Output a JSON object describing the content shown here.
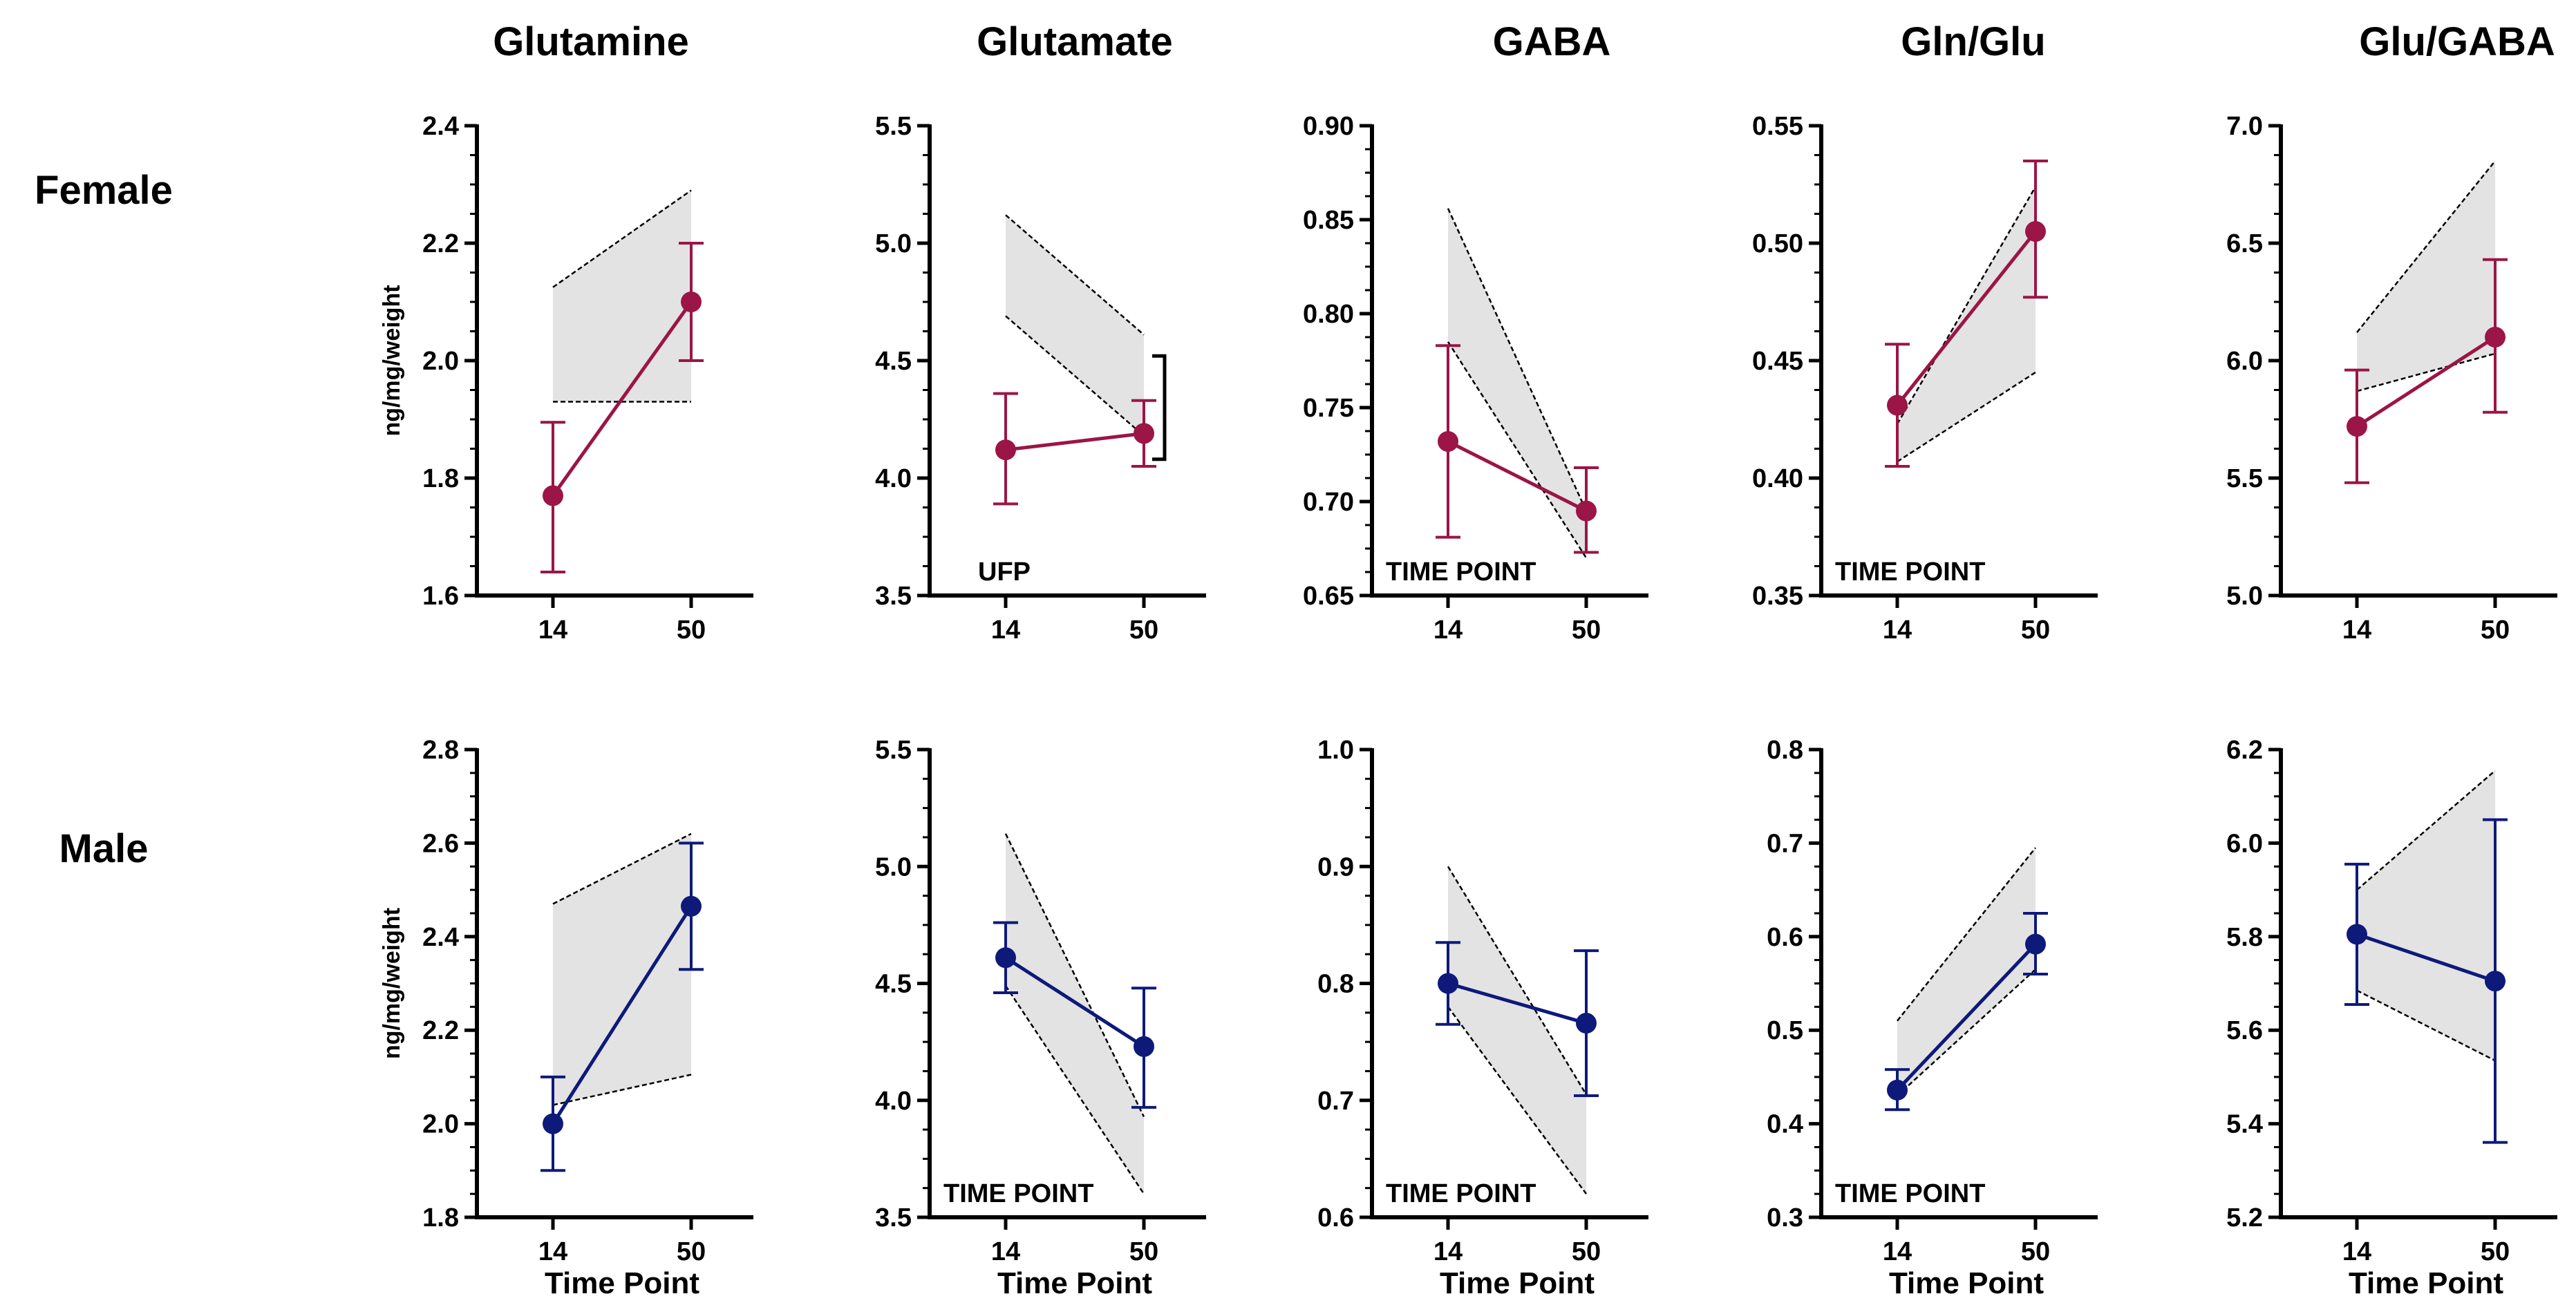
{
  "colors": {
    "female": "#9b1546",
    "male": "#0d1a7a",
    "band": "#e3e3e3",
    "axis": "#000000"
  },
  "column_titles": [
    "Glutamine",
    "Glutamate",
    "GABA",
    "Gln/Glu",
    "Glu/GABA"
  ],
  "row_labels": [
    "Female",
    "Male"
  ],
  "ylabel": "ng/mg/weight",
  "xlabel": "Time Point",
  "chart_data": [
    {
      "type": "line",
      "row": "Female",
      "title": "Glutamine",
      "ylabel": "ng/mg/weight",
      "xlabel": "",
      "categories": [
        "14",
        "50"
      ],
      "ylim": [
        1.6,
        2.4
      ],
      "yticks": [
        "1.6",
        "1.8",
        "2.0",
        "2.2",
        "2.4"
      ],
      "means": [
        1.77,
        2.1
      ],
      "err_low": [
        1.64,
        2.0
      ],
      "err_high": [
        1.895,
        2.2
      ],
      "band_upper": [
        2.125,
        2.29
      ],
      "band_lower": [
        1.93,
        1.93
      ],
      "annotation": ""
    },
    {
      "type": "line",
      "row": "Female",
      "title": "Glutamate",
      "ylabel": "",
      "xlabel": "",
      "categories": [
        "14",
        "50"
      ],
      "ylim": [
        3.5,
        5.5
      ],
      "yticks": [
        "3.5",
        "4.0",
        "4.5",
        "5.0",
        "5.5"
      ],
      "means": [
        4.12,
        4.19
      ],
      "err_low": [
        3.89,
        4.05
      ],
      "err_high": [
        4.36,
        4.33
      ],
      "band_upper": [
        5.12,
        4.61
      ],
      "band_lower": [
        4.69,
        4.18
      ],
      "annotation": "UFP",
      "bracket": true
    },
    {
      "type": "line",
      "row": "Female",
      "title": "GABA",
      "ylabel": "",
      "xlabel": "",
      "categories": [
        "14",
        "50"
      ],
      "ylim": [
        0.65,
        0.9
      ],
      "yticks": [
        "0.65",
        "0.70",
        "0.75",
        "0.80",
        "0.85",
        "0.90"
      ],
      "means": [
        0.732,
        0.695
      ],
      "err_low": [
        0.681,
        0.673
      ],
      "err_high": [
        0.783,
        0.718
      ],
      "band_upper": [
        0.856,
        0.695
      ],
      "band_lower": [
        0.785,
        0.67
      ],
      "annotation": "TIME POINT"
    },
    {
      "type": "line",
      "row": "Female",
      "title": "Gln/Glu",
      "ylabel": "",
      "xlabel": "",
      "categories": [
        "14",
        "50"
      ],
      "ylim": [
        0.35,
        0.55
      ],
      "yticks": [
        "0.35",
        "0.40",
        "0.45",
        "0.50",
        "0.55"
      ],
      "means": [
        0.431,
        0.505
      ],
      "err_low": [
        0.405,
        0.477
      ],
      "err_high": [
        0.457,
        0.535
      ],
      "band_upper": [
        0.423,
        0.524
      ],
      "band_lower": [
        0.407,
        0.445
      ],
      "annotation": "TIME POINT"
    },
    {
      "type": "line",
      "row": "Female",
      "title": "Glu/GABA",
      "ylabel": "",
      "xlabel": "",
      "categories": [
        "14",
        "50"
      ],
      "ylim": [
        5.0,
        7.0
      ],
      "yticks": [
        "5.0",
        "5.5",
        "6.0",
        "6.5",
        "7.0"
      ],
      "means": [
        5.72,
        6.1
      ],
      "err_low": [
        5.48,
        5.78
      ],
      "err_high": [
        5.96,
        6.43
      ],
      "band_upper": [
        6.12,
        6.85
      ],
      "band_lower": [
        5.87,
        6.03
      ],
      "annotation": ""
    },
    {
      "type": "line",
      "row": "Male",
      "title": "Glutamine",
      "ylabel": "ng/mg/weight",
      "xlabel": "Time Point",
      "categories": [
        "14",
        "50"
      ],
      "ylim": [
        1.8,
        2.8
      ],
      "yticks": [
        "1.8",
        "2.0",
        "2.2",
        "2.4",
        "2.6",
        "2.8"
      ],
      "means": [
        2.0,
        2.465
      ],
      "err_low": [
        1.9,
        2.33
      ],
      "err_high": [
        2.1,
        2.6
      ],
      "band_upper": [
        2.47,
        2.62
      ],
      "band_lower": [
        2.04,
        2.105
      ],
      "annotation": ""
    },
    {
      "type": "line",
      "row": "Male",
      "title": "Glutamate",
      "ylabel": "",
      "xlabel": "Time Point",
      "categories": [
        "14",
        "50"
      ],
      "ylim": [
        3.5,
        5.5
      ],
      "yticks": [
        "3.5",
        "4.0",
        "4.5",
        "5.0",
        "5.5"
      ],
      "means": [
        4.61,
        4.23
      ],
      "err_low": [
        4.46,
        3.97
      ],
      "err_high": [
        4.76,
        4.48
      ],
      "band_upper": [
        5.14,
        3.93
      ],
      "band_lower": [
        4.49,
        3.6
      ],
      "annotation": "TIME POINT"
    },
    {
      "type": "line",
      "row": "Male",
      "title": "GABA",
      "ylabel": "",
      "xlabel": "Time Point",
      "categories": [
        "14",
        "50"
      ],
      "ylim": [
        0.6,
        1.0
      ],
      "yticks": [
        "0.6",
        "0.7",
        "0.8",
        "0.9",
        "1.0"
      ],
      "means": [
        0.8,
        0.766
      ],
      "err_low": [
        0.765,
        0.704
      ],
      "err_high": [
        0.835,
        0.828
      ],
      "band_upper": [
        0.9,
        0.705
      ],
      "band_lower": [
        0.78,
        0.62
      ],
      "annotation": "TIME POINT"
    },
    {
      "type": "line",
      "row": "Male",
      "title": "Gln/Glu",
      "ylabel": "",
      "xlabel": "Time Point",
      "categories": [
        "14",
        "50"
      ],
      "ylim": [
        0.3,
        0.8
      ],
      "yticks": [
        "0.3",
        "0.4",
        "0.5",
        "0.6",
        "0.7",
        "0.8"
      ],
      "means": [
        0.436,
        0.592
      ],
      "err_low": [
        0.415,
        0.56
      ],
      "err_high": [
        0.458,
        0.625
      ],
      "band_upper": [
        0.51,
        0.695
      ],
      "band_lower": [
        0.43,
        0.565
      ],
      "annotation": "TIME POINT"
    },
    {
      "type": "line",
      "row": "Male",
      "title": "Glu/GABA",
      "ylabel": "",
      "xlabel": "Time Point",
      "categories": [
        "14",
        "50"
      ],
      "ylim": [
        5.2,
        6.2
      ],
      "yticks": [
        "5.2",
        "5.4",
        "5.6",
        "5.8",
        "6.0",
        "6.2"
      ],
      "means": [
        5.805,
        5.705
      ],
      "err_low": [
        5.655,
        5.36
      ],
      "err_high": [
        5.955,
        6.05
      ],
      "band_upper": [
        5.9,
        6.155
      ],
      "band_lower": [
        5.685,
        5.535
      ],
      "annotation": ""
    }
  ]
}
